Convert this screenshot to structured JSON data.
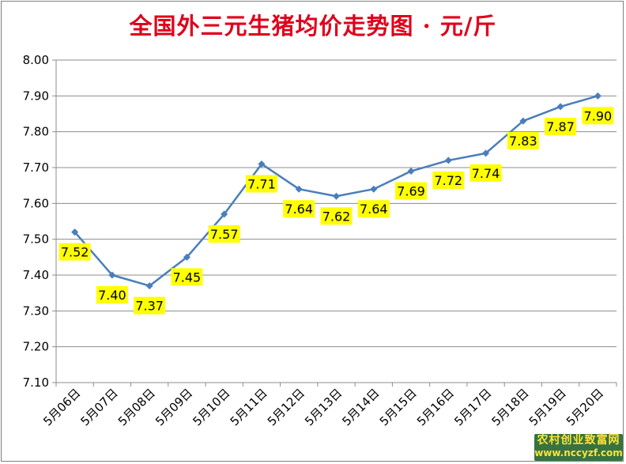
{
  "chart_data": {
    "type": "line",
    "title": "全国外三元生猪均价走势图 · 元/斤",
    "categories": [
      "5月06日",
      "5月07日",
      "5月08日",
      "5月09日",
      "5月10日",
      "5月11日",
      "5月12日",
      "5月13日",
      "5月14日",
      "5月15日",
      "5月16日",
      "5月17日",
      "5月18日",
      "5月19日",
      "5月20日"
    ],
    "values": [
      7.52,
      7.4,
      7.37,
      7.45,
      7.57,
      7.71,
      7.64,
      7.62,
      7.64,
      7.69,
      7.72,
      7.74,
      7.83,
      7.87,
      7.9
    ],
    "value_labels": [
      "7.52",
      "7.40",
      "7.37",
      "7.45",
      "7.57",
      "7.71",
      "7.64",
      "7.62",
      "7.64",
      "7.69",
      "7.72",
      "7.74",
      "7.83",
      "7.87",
      "7.90"
    ],
    "y_ticks": [
      "7.10",
      "7.20",
      "7.30",
      "7.40",
      "7.50",
      "7.60",
      "7.70",
      "7.80",
      "7.90",
      "8.00"
    ],
    "ylim": [
      7.1,
      8.0
    ],
    "grid": true,
    "legend": "none",
    "colors": {
      "line": "#4a7ebb",
      "label_box": "#ffff00",
      "title": "#e0001b",
      "grid": "#8c8c8c"
    }
  },
  "watermark": {
    "site_name": "农村创业致富网",
    "url": "www.nccyzf.com"
  }
}
